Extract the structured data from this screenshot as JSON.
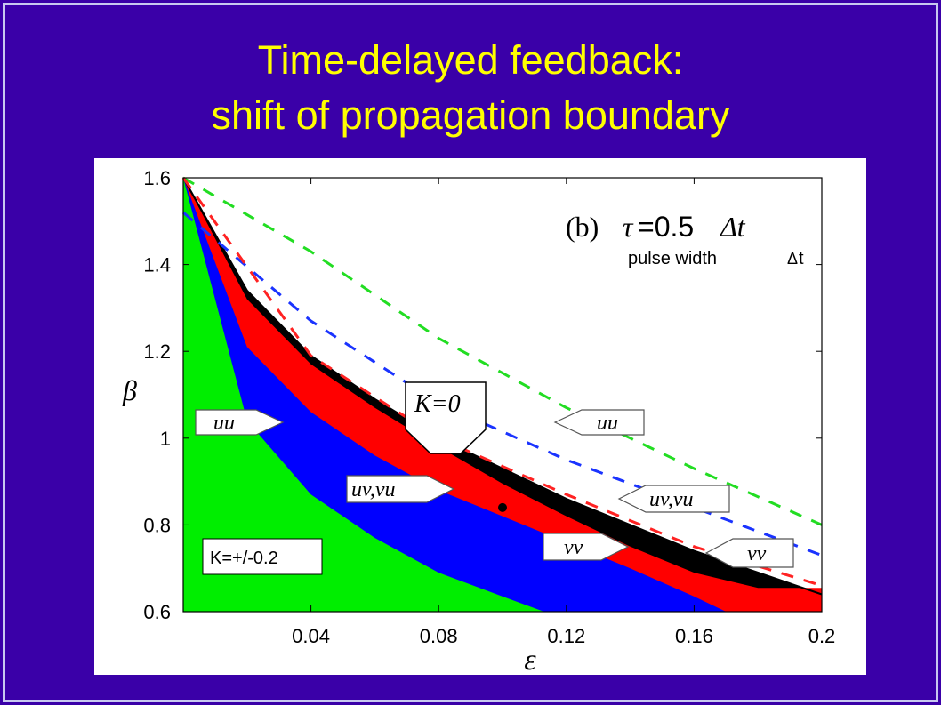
{
  "slide": {
    "title_line1": "Time-delayed feedback:",
    "title_line2": "shift of propagation boundary"
  },
  "colors": {
    "background": "#3a00a8",
    "title": "#ffff00",
    "region_uu": "#00ee00",
    "region_uv_vu": "#0000ff",
    "region_vv": "#ff0000",
    "k0_band": "#000000"
  },
  "chart_data": {
    "type": "area",
    "xlabel": "ε",
    "ylabel": "β",
    "xlim": [
      0,
      0.2
    ],
    "ylim": [
      0.6,
      1.6
    ],
    "x_ticks": [
      "0.04",
      "0.08",
      "0.12",
      "0.16",
      "0.2"
    ],
    "y_ticks": [
      "0.6",
      "0.8",
      "1",
      "1.2",
      "1.4",
      "1.6"
    ],
    "panel_label": "(b)",
    "tau_prefix": "τ",
    "tau_eq": "=0.5",
    "tau_suffix": "Δt",
    "pulse_label": "pulse width",
    "pulse_icon": "Δ",
    "pulse_suffix": "t",
    "k_label": "K=+/-0.2",
    "callouts": {
      "k0": "K=0",
      "uu_left": "uu",
      "uu_right": "uu",
      "uvvu_left": "uv,vu",
      "uvvu_right": "uv,vu",
      "vv_left": "vv",
      "vv_right": "vv"
    },
    "marker_point": {
      "x": 0.1,
      "y": 0.84
    },
    "series": [
      {
        "name": "uu",
        "x": [
          0,
          0.02,
          0.04,
          0.06,
          0.08,
          0.1,
          0.113
        ],
        "y": [
          1.6,
          1.04,
          0.87,
          0.77,
          0.69,
          0.635,
          0.6
        ]
      },
      {
        "name": "uv,vu",
        "x": [
          0,
          0.02,
          0.04,
          0.06,
          0.08,
          0.1,
          0.12,
          0.14,
          0.16,
          0.17
        ],
        "y": [
          1.6,
          1.21,
          1.06,
          0.96,
          0.88,
          0.82,
          0.76,
          0.7,
          0.635,
          0.6
        ]
      },
      {
        "name": "vv",
        "x": [
          0,
          0.02,
          0.04,
          0.06,
          0.08,
          0.1,
          0.12,
          0.14,
          0.16,
          0.18,
          0.2
        ],
        "y": [
          1.6,
          1.32,
          1.17,
          1.07,
          0.98,
          0.895,
          0.82,
          0.75,
          0.69,
          0.655,
          0.655
        ]
      },
      {
        "name": "K=0",
        "x": [
          0,
          0.02,
          0.04,
          0.06,
          0.08,
          0.1,
          0.12,
          0.14,
          0.16,
          0.18,
          0.2
        ],
        "y": [
          1.6,
          1.34,
          1.19,
          1.09,
          1.0,
          0.93,
          0.86,
          0.8,
          0.74,
          0.69,
          0.64
        ]
      },
      {
        "name": "dashed red",
        "x": [
          0,
          0.04,
          0.08,
          0.12,
          0.16,
          0.2
        ],
        "y": [
          1.6,
          1.19,
          1.0,
          0.87,
          0.75,
          0.66
        ]
      },
      {
        "name": "dashed blue",
        "x": [
          0,
          0.04,
          0.08,
          0.12,
          0.16,
          0.2
        ],
        "y": [
          1.52,
          1.27,
          1.08,
          0.95,
          0.84,
          0.73
        ]
      },
      {
        "name": "dashed green",
        "x": [
          0,
          0.04,
          0.08,
          0.12,
          0.16,
          0.2
        ],
        "y": [
          1.6,
          1.43,
          1.23,
          1.07,
          0.93,
          0.8
        ]
      }
    ]
  }
}
